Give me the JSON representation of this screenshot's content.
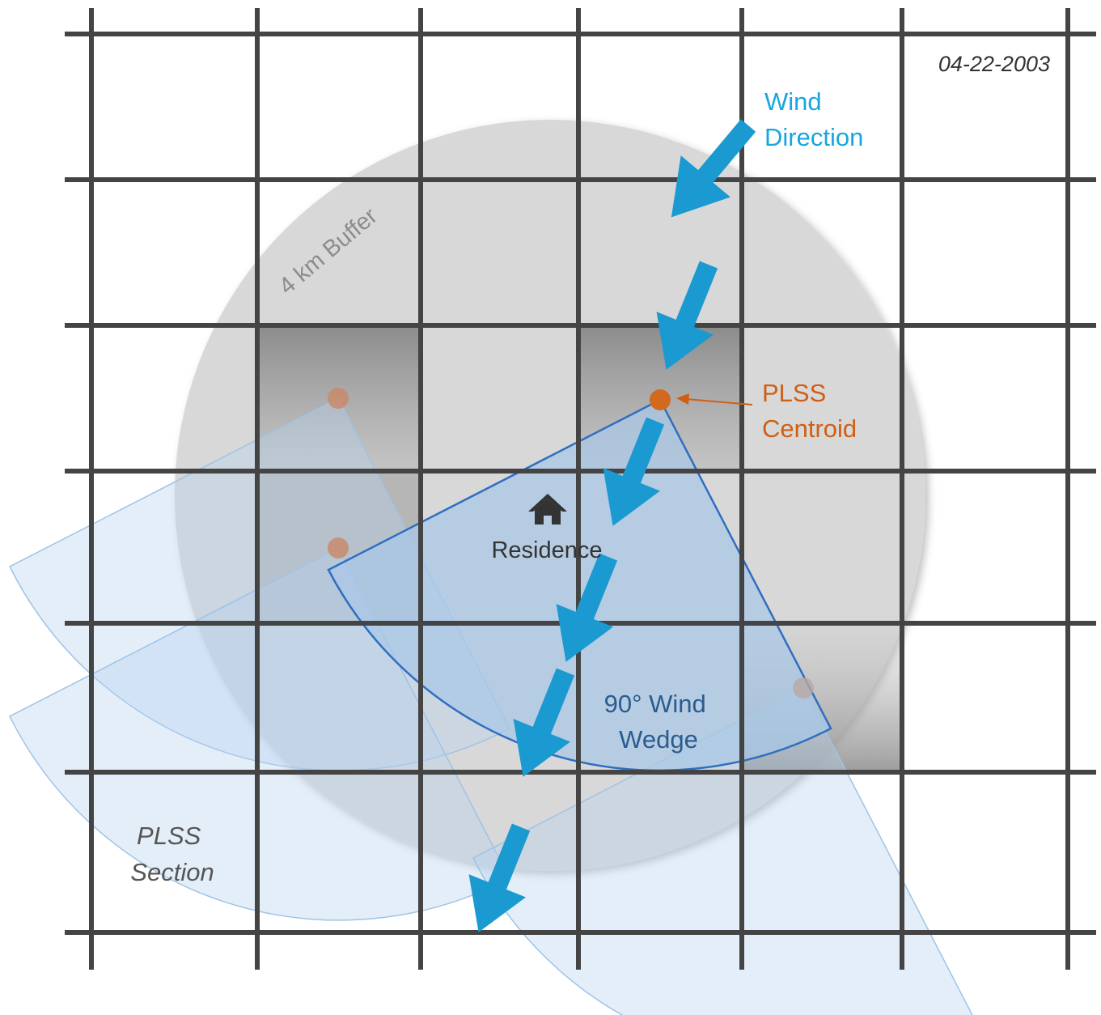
{
  "date": "04-22-2003",
  "labels": {
    "wind_direction": [
      "Wind",
      "Direction"
    ],
    "buffer": "4 km Buffer",
    "plss_centroid": [
      "PLSS",
      "Centroid"
    ],
    "residence": "Residence",
    "wind_wedge": [
      "90° Wind",
      "Wedge"
    ],
    "plss_section": [
      "PLSS",
      "Section"
    ]
  },
  "colors": {
    "grid": "#444444",
    "buffer": "#d9d9d9",
    "wind_arrow": "#1a9ad1",
    "wind_text": "#16a7e0",
    "centroid": "#d2691e",
    "centroid_text": "#d05f14",
    "wedge_fill": "#a9c8e8",
    "wedge_stroke": "#2f6fc0",
    "wedge_text": "#2a5c8f",
    "section_shade": "#8a8a8a"
  },
  "icons": {
    "residence": "house-icon",
    "wind": "wind-arrow-icon"
  }
}
